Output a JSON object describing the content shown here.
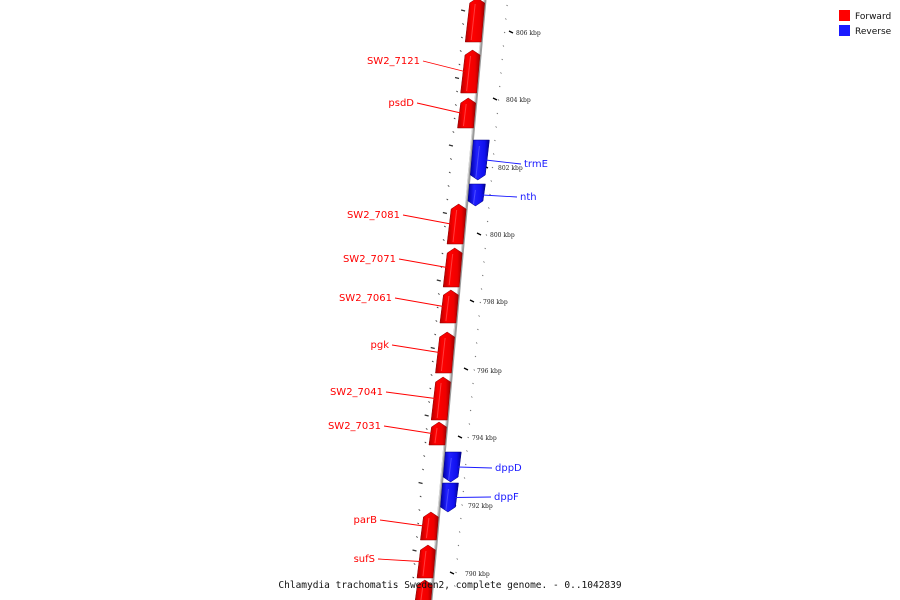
{
  "legend": {
    "forward_label": "Forward",
    "reverse_label": "Reverse",
    "forward_color": "#ff0000",
    "reverse_color": "#1a1aff"
  },
  "caption": "Chlamydia trachomatis Sweden2, complete genome. - 0..1042839",
  "axis": {
    "unit": "kbp",
    "ticks": [
      {
        "label": "806 kbp"
      },
      {
        "label": "804 kbp"
      },
      {
        "label": "802 kbp"
      },
      {
        "label": "800 kbp"
      },
      {
        "label": "798 kbp"
      },
      {
        "label": "796 kbp"
      },
      {
        "label": "794 kbp"
      },
      {
        "label": "792 kbp"
      },
      {
        "label": "790 kbp"
      }
    ]
  },
  "genes": [
    {
      "name": "",
      "strand": "forward"
    },
    {
      "name": "SW2_7121",
      "strand": "forward"
    },
    {
      "name": "psdD",
      "strand": "forward"
    },
    {
      "name": "trmE",
      "strand": "reverse"
    },
    {
      "name": "nth",
      "strand": "reverse"
    },
    {
      "name": "SW2_7081",
      "strand": "forward"
    },
    {
      "name": "SW2_7071",
      "strand": "forward"
    },
    {
      "name": "SW2_7061",
      "strand": "forward"
    },
    {
      "name": "pgk",
      "strand": "forward"
    },
    {
      "name": "SW2_7041",
      "strand": "forward"
    },
    {
      "name": "SW2_7031",
      "strand": "forward"
    },
    {
      "name": "dppD",
      "strand": "reverse"
    },
    {
      "name": "dppF",
      "strand": "reverse"
    },
    {
      "name": "parB",
      "strand": "forward"
    },
    {
      "name": "sufS",
      "strand": "forward"
    },
    {
      "name": "",
      "strand": "forward"
    }
  ]
}
